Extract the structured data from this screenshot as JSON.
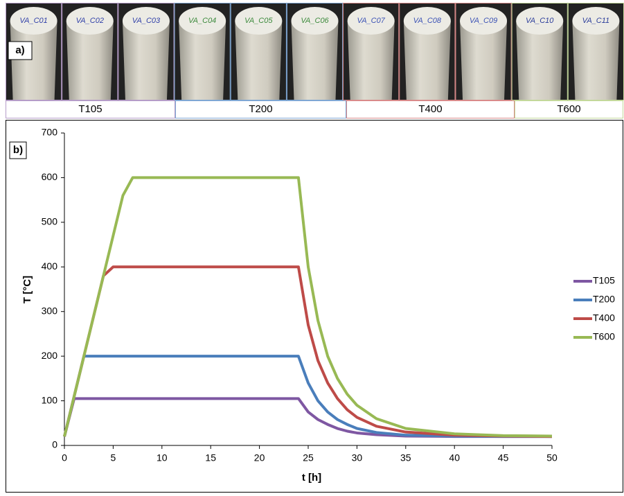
{
  "panel_a": {
    "label": "a)",
    "samples": [
      "VA_C01",
      "VA_C02",
      "VA_C03",
      "VA_C04",
      "VA_C05",
      "VA_C06",
      "VA_C07",
      "VA_C08",
      "VA_C09",
      "VA_C10",
      "VA_C11"
    ],
    "groups": [
      {
        "name": "T105",
        "color": "#b59cc8"
      },
      {
        "name": "T200",
        "color": "#7fa7d4"
      },
      {
        "name": "T400",
        "color": "#d98a8a"
      },
      {
        "name": "T600",
        "color": "#c3d89a"
      }
    ]
  },
  "chart_data": {
    "type": "line",
    "panel_label": "b)",
    "x_label": "t [h]",
    "y_label": "T [°C]",
    "xlim": [
      0,
      50
    ],
    "xticks": [
      0,
      5,
      10,
      15,
      20,
      25,
      30,
      35,
      40,
      45,
      50
    ],
    "ylim": [
      0,
      700
    ],
    "yticks": [
      0,
      100,
      200,
      300,
      400,
      500,
      600,
      700
    ],
    "x": [
      0,
      1,
      2,
      4,
      5,
      6,
      7,
      24,
      25,
      26,
      27,
      28,
      29,
      30,
      32,
      35,
      40,
      45,
      50
    ],
    "series": [
      {
        "name": "T105",
        "color": "#7e57a2",
        "values": [
          20,
          105,
          105,
          105,
          105,
          105,
          105,
          105,
          75,
          58,
          47,
          38,
          32,
          28,
          24,
          21,
          20,
          20,
          20
        ]
      },
      {
        "name": "T200",
        "color": "#4a7ebb",
        "values": [
          20,
          110,
          200,
          200,
          200,
          200,
          200,
          200,
          140,
          100,
          75,
          58,
          47,
          38,
          29,
          23,
          21,
          20,
          20
        ]
      },
      {
        "name": "T400",
        "color": "#be4b48",
        "values": [
          20,
          110,
          200,
          380,
          400,
          400,
          400,
          400,
          270,
          190,
          140,
          105,
          80,
          63,
          43,
          30,
          23,
          21,
          20
        ]
      },
      {
        "name": "T600",
        "color": "#98b954",
        "values": [
          20,
          110,
          200,
          380,
          470,
          560,
          600,
          600,
          400,
          280,
          200,
          150,
          115,
          90,
          60,
          38,
          26,
          22,
          21
        ]
      }
    ]
  }
}
